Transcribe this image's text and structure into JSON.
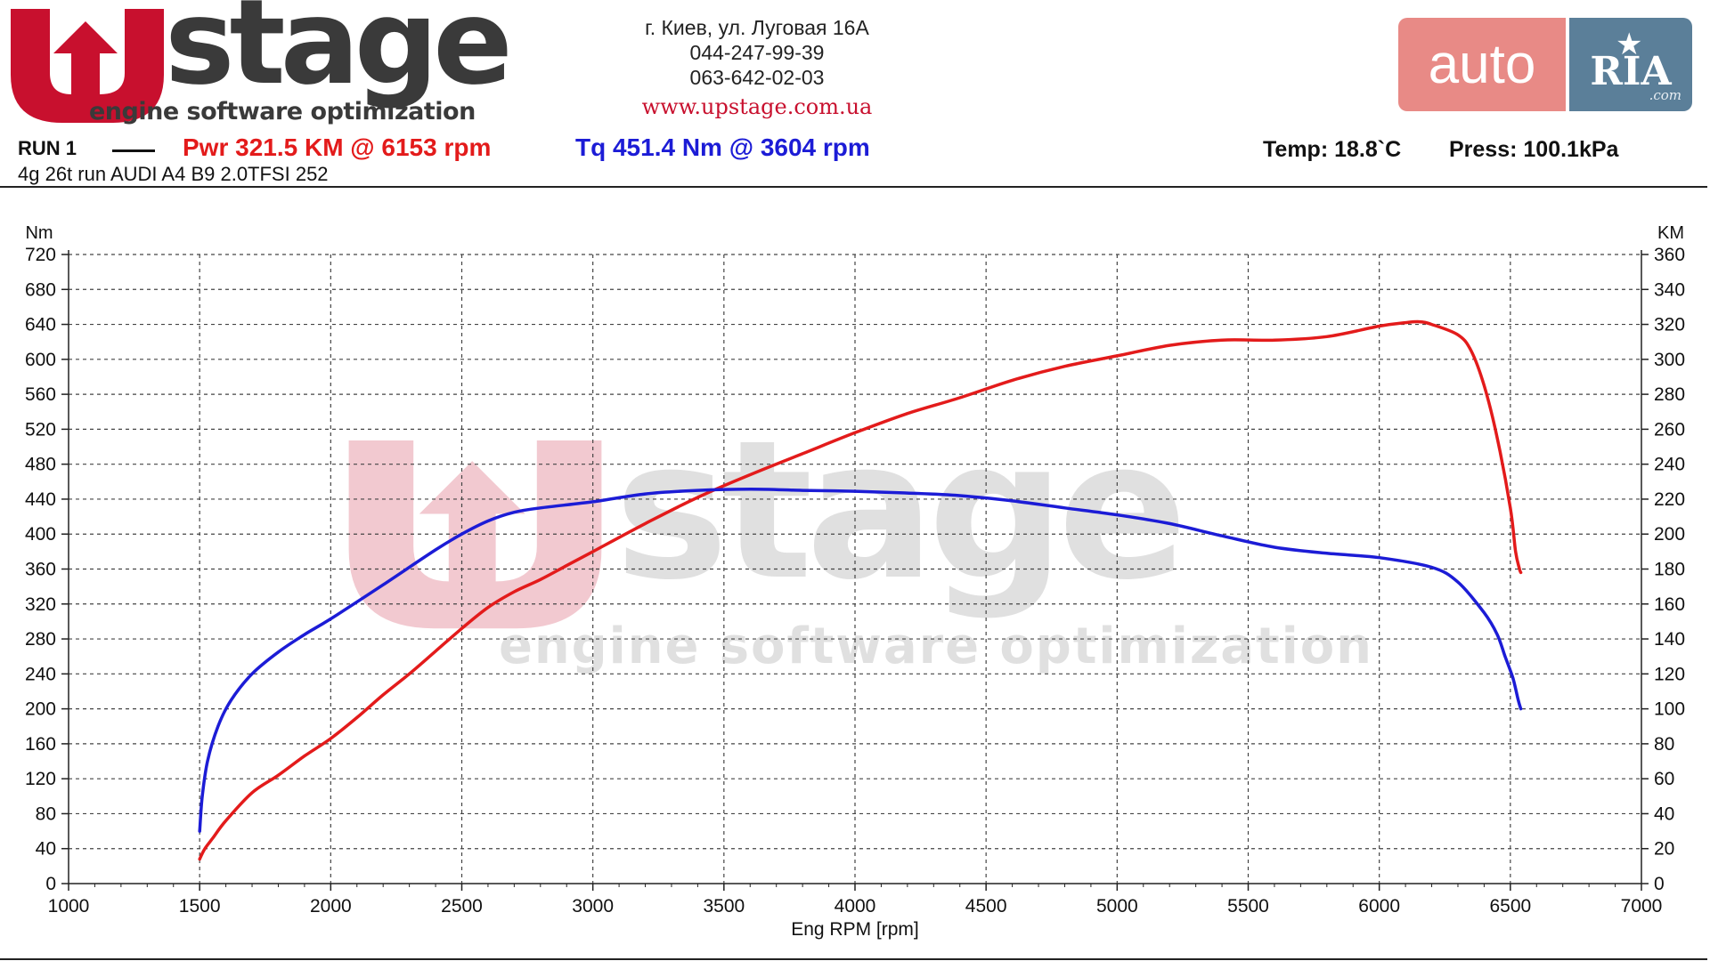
{
  "header": {
    "logo_main": "stage",
    "logo_tagline": "engine software optimization",
    "address": "г. Киев, ул. Луговая 16А",
    "phone1": "044-247-99-39",
    "phone2": "063-642-02-03",
    "website": "www.upstage.com.ua",
    "autoria_auto": "auto",
    "autoria_ria": "RIA",
    "autoria_com": ".com"
  },
  "run": {
    "label": "RUN 1",
    "pwr": "Pwr  321.5 KM @ 6153 rpm",
    "tq": "Tq 451.4 Nm @ 3604 rpm",
    "temp": "Temp: 18.8`C",
    "press": "Press: 100.1kPa",
    "subtitle": "4g 26t run AUDI A4 B9 2.0TFSI 252"
  },
  "colors": {
    "power": "#e31b1b",
    "torque": "#1c1cd6",
    "logo_red": "#c8102e",
    "logo_dark": "#3a3a3a"
  },
  "chart_data": {
    "type": "line",
    "xlabel": "Eng RPM [rpm]",
    "ylabel_left": "Nm",
    "ylabel_right": "KM",
    "xlim": [
      1000,
      7000
    ],
    "ylim_left": [
      0,
      720
    ],
    "ylim_right": [
      0,
      360
    ],
    "xticks": [
      1000,
      1500,
      2000,
      2500,
      3000,
      3500,
      4000,
      4500,
      5000,
      5500,
      6000,
      6500,
      7000
    ],
    "yticks_left": [
      0,
      40,
      80,
      120,
      160,
      200,
      240,
      280,
      320,
      360,
      400,
      440,
      480,
      520,
      560,
      600,
      640,
      680,
      720
    ],
    "yticks_right": [
      0,
      20,
      40,
      60,
      80,
      100,
      120,
      140,
      160,
      180,
      200,
      220,
      240,
      260,
      280,
      300,
      320,
      340,
      360
    ],
    "grid": true,
    "series": [
      {
        "name": "Pwr",
        "axis": "right",
        "color": "#e31b1b",
        "x": [
          1500,
          1520,
          1550,
          1600,
          1700,
          1800,
          1900,
          2000,
          2100,
          2200,
          2300,
          2400,
          2500,
          2600,
          2700,
          2800,
          2900,
          3000,
          3200,
          3400,
          3600,
          3800,
          4000,
          4200,
          4400,
          4600,
          4800,
          5000,
          5200,
          5400,
          5600,
          5800,
          6000,
          6100,
          6153,
          6200,
          6300,
          6350,
          6400,
          6450,
          6500,
          6520,
          6535,
          6540
        ],
        "y": [
          14,
          20,
          26,
          36,
          52,
          62,
          73,
          83,
          95,
          108,
          120,
          133,
          146,
          158,
          167,
          174,
          182,
          190,
          206,
          221,
          234,
          246,
          258,
          269,
          278,
          288,
          296,
          302,
          308,
          311,
          311,
          313,
          319,
          321,
          321.5,
          320,
          314,
          305,
          285,
          255,
          215,
          190,
          180,
          178
        ]
      },
      {
        "name": "Tq",
        "axis": "left",
        "color": "#1c1cd6",
        "x": [
          1500,
          1510,
          1530,
          1570,
          1620,
          1700,
          1800,
          1900,
          2000,
          2200,
          2400,
          2500,
          2600,
          2700,
          2800,
          3000,
          3200,
          3400,
          3604,
          3800,
          4000,
          4200,
          4400,
          4600,
          4800,
          5000,
          5200,
          5400,
          5600,
          5800,
          6000,
          6200,
          6300,
          6400,
          6450,
          6480,
          6510,
          6530,
          6540
        ],
        "y": [
          60,
          100,
          140,
          180,
          210,
          240,
          265,
          285,
          303,
          342,
          382,
          400,
          415,
          425,
          430,
          437,
          446,
          450,
          451.4,
          450,
          449,
          447,
          444,
          438,
          430,
          422,
          412,
          398,
          385,
          378,
          373,
          362,
          345,
          310,
          285,
          260,
          235,
          210,
          200
        ]
      }
    ]
  }
}
